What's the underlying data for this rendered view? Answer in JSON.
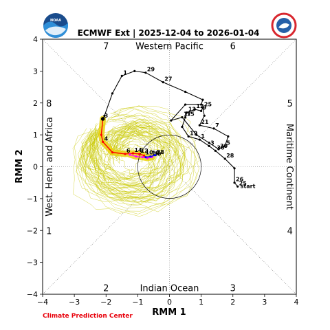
{
  "header": {
    "title": "ECMWF Ext | 2025-12-04 to 2026-01-04",
    "credit": "Climate Prediction Center",
    "noaa_logo_text": "NOAA"
  },
  "chart_data": {
    "type": "line",
    "title": "ECMWF Ext | 2025-12-04 to 2026-01-04",
    "xlabel": "RMM 1",
    "ylabel": "RMM 2",
    "xlim": [
      -4,
      4
    ],
    "ylim": [
      -4,
      4
    ],
    "xticks": [
      -4,
      -3,
      -2,
      -1,
      0,
      1,
      2,
      3,
      4
    ],
    "yticks": [
      -4,
      -3,
      -2,
      -1,
      0,
      1,
      2,
      3,
      4
    ],
    "regions": {
      "top": "Western Pacific",
      "bottom": "Indian Ocean",
      "left": "West. Hem. and Africa",
      "right": "Maritime Continent"
    },
    "phases": [
      {
        "label": "1",
        "x": -3.8,
        "y": -2.0
      },
      {
        "label": "2",
        "x": -2.0,
        "y": -3.8
      },
      {
        "label": "3",
        "x": 2.0,
        "y": -3.8
      },
      {
        "label": "4",
        "x": 3.8,
        "y": -2.0
      },
      {
        "label": "5",
        "x": 3.8,
        "y": 2.0
      },
      {
        "label": "6",
        "x": 2.0,
        "y": 3.8
      },
      {
        "label": "7",
        "x": -2.0,
        "y": 3.8
      },
      {
        "label": "8",
        "x": -3.8,
        "y": 2.0
      }
    ],
    "colors": {
      "observed": "#000000",
      "forecast_week1": "#ff0000",
      "forecast_week2": "#ff00ff",
      "forecast_week3": "#0000ff",
      "ensemble": "#c8c800",
      "ensemble_mean_band": "#e8d000"
    },
    "observed": {
      "start_label": "start",
      "points": [
        {
          "x": 2.15,
          "y": -0.62,
          "label": "25"
        },
        {
          "x": 2.05,
          "y": -0.5,
          "label": "26"
        },
        {
          "x": 2.05,
          "y": -0.05,
          "label": ""
        },
        {
          "x": 1.75,
          "y": 0.25,
          "label": "28"
        },
        {
          "x": 1.45,
          "y": 0.5,
          "label": "30"
        },
        {
          "x": 1.25,
          "y": 0.65,
          "label": "3"
        },
        {
          "x": 0.95,
          "y": 0.85,
          "label": "1"
        },
        {
          "x": 0.6,
          "y": 0.95,
          "label": "19"
        },
        {
          "x": 0.4,
          "y": 1.25,
          "label": ""
        },
        {
          "x": 0.5,
          "y": 1.55,
          "label": "15"
        },
        {
          "x": 0.55,
          "y": 1.7,
          "label": "13"
        },
        {
          "x": 0.8,
          "y": 1.8,
          "label": "12"
        },
        {
          "x": 1.0,
          "y": 1.75,
          "label": "9"
        },
        {
          "x": 1.05,
          "y": 1.85,
          "label": "25"
        },
        {
          "x": 1.1,
          "y": 1.6,
          "label": ""
        },
        {
          "x": 0.95,
          "y": 1.3,
          "label": "21"
        },
        {
          "x": 1.4,
          "y": 1.2,
          "label": "7"
        },
        {
          "x": 1.85,
          "y": 0.95,
          "label": ""
        },
        {
          "x": 1.75,
          "y": 0.65,
          "label": "5"
        },
        {
          "x": 1.55,
          "y": 0.55,
          "label": "30"
        },
        {
          "x": 1.25,
          "y": 0.75,
          "label": ""
        },
        {
          "x": 0.85,
          "y": 1.0,
          "label": ""
        },
        {
          "x": 0.4,
          "y": 1.55,
          "label": "17"
        },
        {
          "x": 0.05,
          "y": 1.45,
          "label": ""
        },
        {
          "x": 0.5,
          "y": 1.95,
          "label": ""
        },
        {
          "x": 1.0,
          "y": 1.95,
          "label": ""
        },
        {
          "x": 1.05,
          "y": 2.1,
          "label": ""
        },
        {
          "x": 0.5,
          "y": 2.35,
          "label": ""
        },
        {
          "x": -0.2,
          "y": 2.65,
          "label": "27"
        },
        {
          "x": -0.75,
          "y": 2.95,
          "label": "29"
        },
        {
          "x": -1.1,
          "y": 3.0,
          "label": ""
        },
        {
          "x": -1.5,
          "y": 2.85,
          "label": "1"
        },
        {
          "x": -1.8,
          "y": 2.3,
          "label": ""
        },
        {
          "x": -2.05,
          "y": 1.6,
          "label": ""
        },
        {
          "x": -2.1,
          "y": 1.5,
          "label": "3"
        }
      ]
    },
    "forecast": {
      "red": [
        {
          "x": -2.1,
          "y": 1.5,
          "label": ""
        },
        {
          "x": -2.15,
          "y": 1.0,
          "label": ""
        },
        {
          "x": -2.1,
          "y": 0.78,
          "label": "4"
        },
        {
          "x": -1.8,
          "y": 0.45,
          "label": ""
        },
        {
          "x": -1.4,
          "y": 0.4,
          "label": "6"
        },
        {
          "x": -1.15,
          "y": 0.42,
          "label": "14"
        },
        {
          "x": -0.95,
          "y": 0.4,
          "label": "12"
        },
        {
          "x": -0.8,
          "y": 0.35,
          "label": "10"
        }
      ],
      "magenta": [
        {
          "x": -1.25,
          "y": 0.38,
          "label": ""
        },
        {
          "x": -1.05,
          "y": 0.32,
          "label": ""
        },
        {
          "x": -0.85,
          "y": 0.3,
          "label": ""
        },
        {
          "x": -0.7,
          "y": 0.27,
          "label": ""
        },
        {
          "x": -0.55,
          "y": 0.3,
          "label": "20"
        }
      ],
      "blue": [
        {
          "x": -0.75,
          "y": 0.3,
          "label": ""
        },
        {
          "x": -0.6,
          "y": 0.32,
          "label": "18"
        },
        {
          "x": -0.45,
          "y": 0.36,
          "label": "28"
        }
      ]
    },
    "unit_circle_radius": 1,
    "grid": "diagonal dotted dividers",
    "legend": "none"
  }
}
